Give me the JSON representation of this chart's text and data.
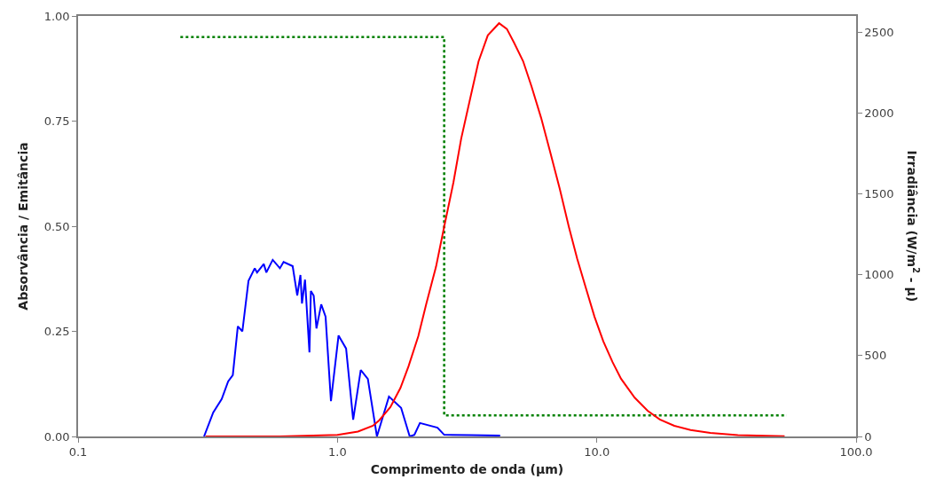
{
  "chart_data": {
    "type": "line",
    "xlabel": "Comprimento de onda (µm)",
    "ylabel": "Absorvância / Emitância",
    "y2label": "Irradiância (W/m$^{2}$ - µ)",
    "log": "x",
    "xlim": [
      0.1,
      100
    ],
    "xticks": [
      {
        "value": 0.1,
        "label": "0.1"
      },
      {
        "value": 1,
        "label": "1.0"
      },
      {
        "value": 10,
        "label": "10.0"
      },
      {
        "value": 100,
        "label": "100.0"
      }
    ],
    "ylim": [
      0,
      1
    ],
    "yticks": [
      {
        "value": 0,
        "label": "0.00"
      },
      {
        "value": 0.25,
        "label": "0.25"
      },
      {
        "value": 0.5,
        "label": "0.50"
      },
      {
        "value": 0.75,
        "label": "0.75"
      },
      {
        "value": 1,
        "label": "1.00"
      }
    ],
    "y2lim": [
      0,
      2600
    ],
    "y2ticks": [
      0,
      500,
      1000,
      1500,
      2000,
      2500
    ],
    "marker": "none",
    "series": [
      {
        "color": "#0000ff",
        "line_style": "solid",
        "x": [
          0.306,
          0.332,
          0.358,
          0.379,
          0.395,
          0.413,
          0.43,
          0.454,
          0.48,
          0.49,
          0.52,
          0.532,
          0.563,
          0.6,
          0.62,
          0.672,
          0.7,
          0.72,
          0.73,
          0.75,
          0.78,
          0.79,
          0.81,
          0.83,
          0.866,
          0.9,
          0.944,
          1.01,
          1.08,
          1.15,
          1.23,
          1.31,
          1.42,
          1.58,
          1.76,
          1.9,
          1.98,
          2.08,
          2.43,
          2.58,
          3.27,
          4.24
        ],
        "values": [
          0,
          0.057,
          0.089,
          0.131,
          0.146,
          0.262,
          0.25,
          0.37,
          0.4,
          0.39,
          0.41,
          0.39,
          0.42,
          0.4,
          0.415,
          0.405,
          0.335,
          0.384,
          0.316,
          0.373,
          0.2,
          0.346,
          0.335,
          0.257,
          0.314,
          0.285,
          0.084,
          0.24,
          0.209,
          0.04,
          0.158,
          0.137,
          0,
          0.095,
          0.068,
          0,
          0.004,
          0.032,
          0.021,
          0.004,
          0.003,
          0.002
        ]
      },
      {
        "color": "#ff0000",
        "line_style": "solid",
        "axis": "y2",
        "x": [
          0.31,
          0.6,
          1.0,
          1.2,
          1.37,
          1.45,
          1.6,
          1.75,
          1.88,
          2.05,
          2.2,
          2.4,
          2.58,
          2.8,
          3.0,
          3.25,
          3.5,
          3.8,
          4.2,
          4.5,
          4.8,
          5.2,
          5.6,
          6.1,
          6.6,
          7.2,
          7.8,
          8.4,
          9.1,
          9.8,
          10.6,
          11.5,
          12.4,
          14,
          15.7,
          17.5,
          19.9,
          23,
          27.4,
          35,
          53
        ],
        "values": [
          0,
          0,
          10,
          30,
          66,
          100,
          181,
          300,
          434,
          620,
          819,
          1050,
          1297,
          1570,
          1841,
          2090,
          2319,
          2480,
          2555,
          2520,
          2434,
          2320,
          2165,
          1970,
          1764,
          1530,
          1297,
          1100,
          912,
          740,
          588,
          460,
          357,
          240,
          159,
          105,
          66,
          40,
          22,
          8,
          2
        ]
      },
      {
        "color": "#008000",
        "line_style": "dotted",
        "x": [
          0.248,
          2.58,
          2.58,
          54
        ],
        "values": [
          0.95,
          0.95,
          0.05,
          0.05
        ]
      }
    ]
  }
}
